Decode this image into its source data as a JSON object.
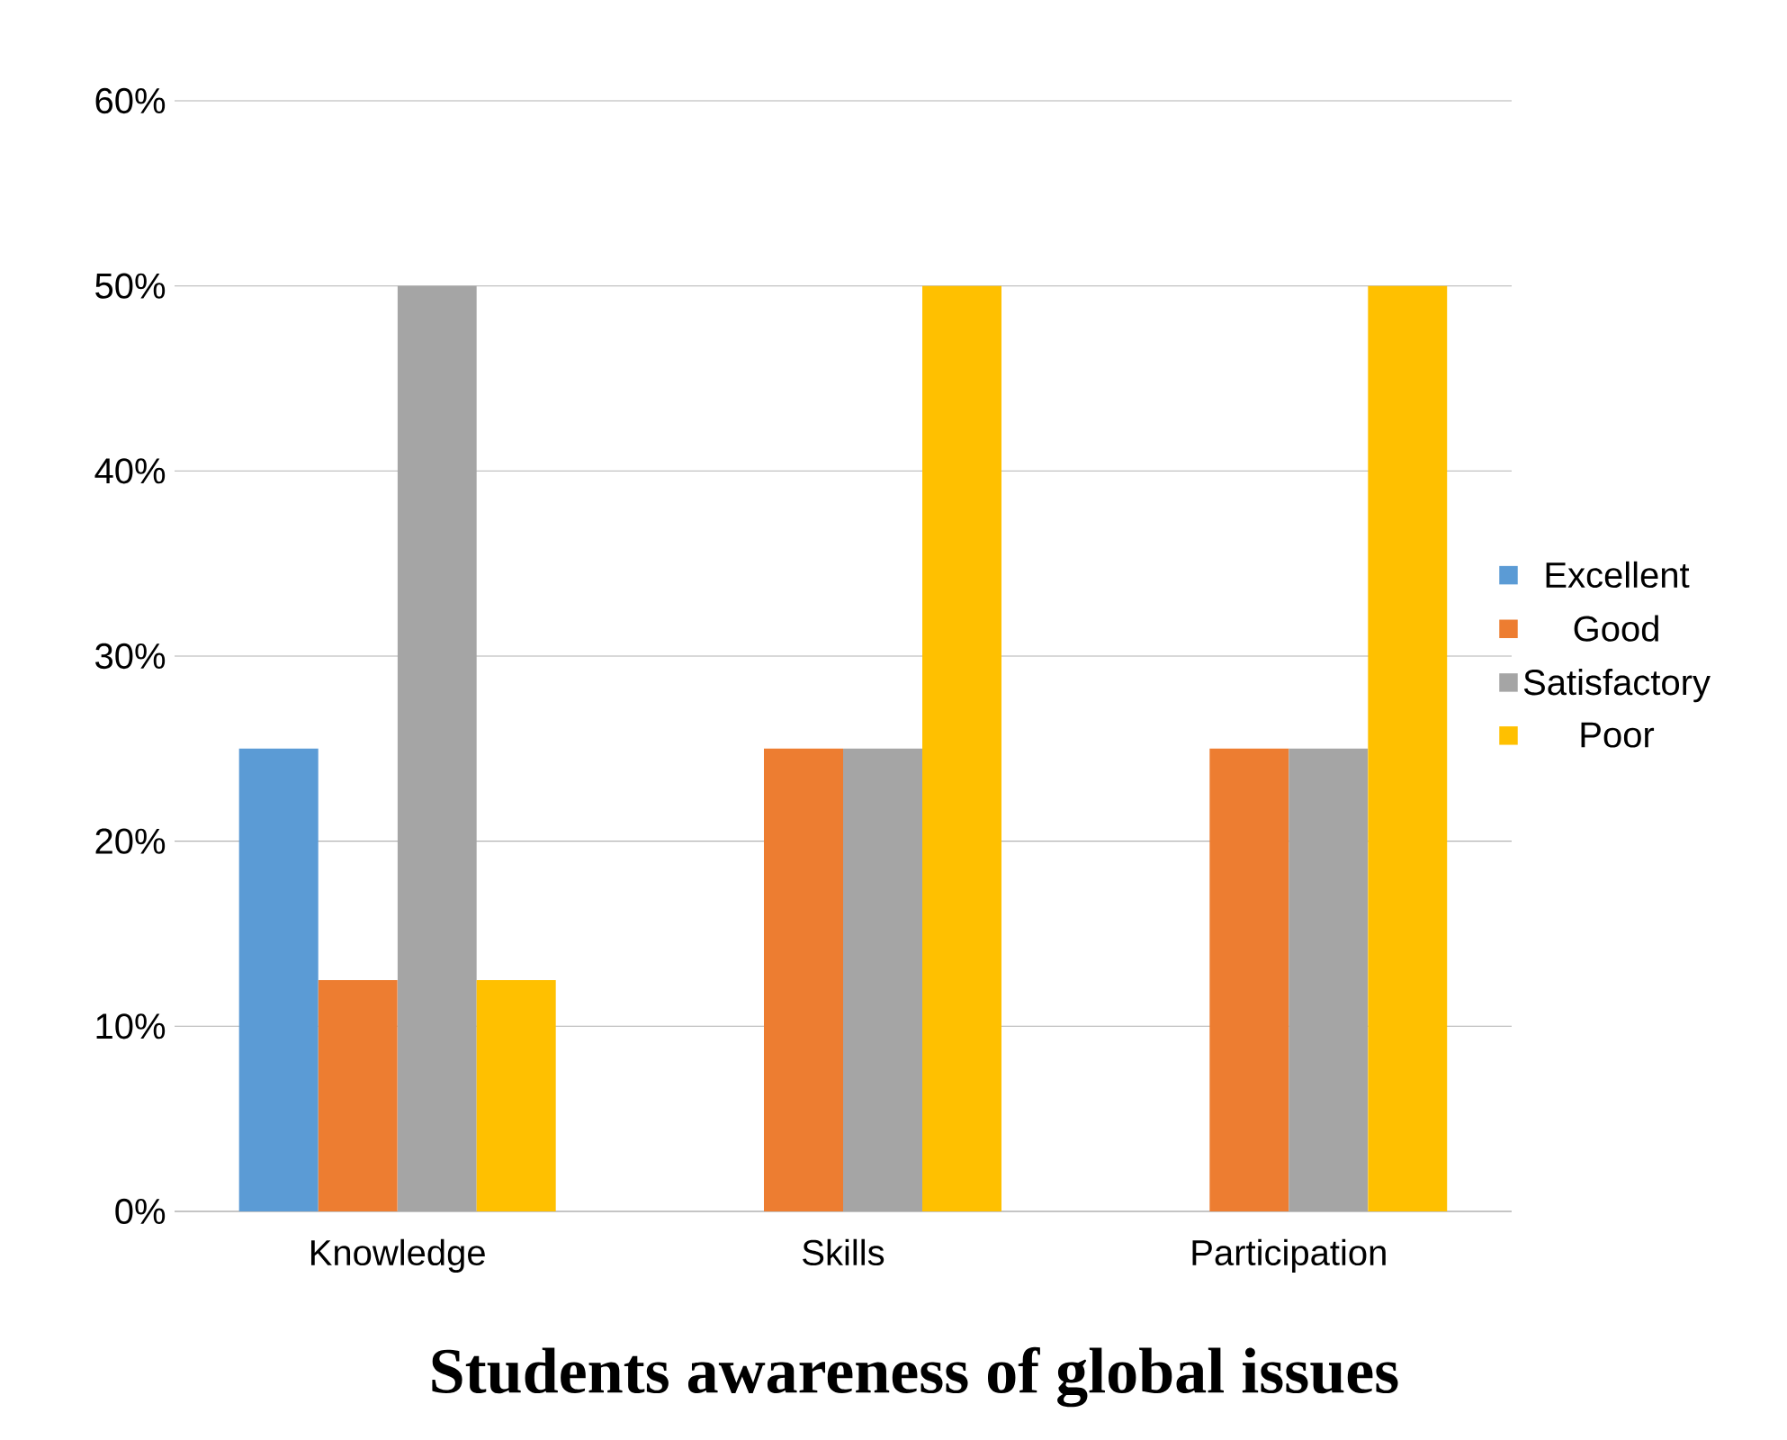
{
  "chart_data": {
    "type": "bar",
    "title": "Students awareness of global issues",
    "categories": [
      "Knowledge",
      "Skills",
      "Participation"
    ],
    "series": [
      {
        "name": "Excellent",
        "color": "#5b9bd5",
        "values": [
          25,
          0,
          0
        ]
      },
      {
        "name": "Good",
        "color": "#ed7d31",
        "values": [
          12.5,
          25,
          25
        ]
      },
      {
        "name": "Satisfactory",
        "color": "#a5a5a5",
        "values": [
          50,
          25,
          25
        ]
      },
      {
        "name": "Poor",
        "color": "#ffc000",
        "values": [
          12.5,
          50,
          50
        ]
      }
    ],
    "ylim": [
      0,
      60
    ],
    "yticks": [
      {
        "value": 0,
        "label": "0%"
      },
      {
        "value": 10,
        "label": "10%"
      },
      {
        "value": 20,
        "label": "20%"
      },
      {
        "value": 30,
        "label": "30%"
      },
      {
        "value": 40,
        "label": "40%"
      },
      {
        "value": 50,
        "label": "50%"
      },
      {
        "value": 60,
        "label": "60%"
      }
    ],
    "grid": "y",
    "legend": "right"
  }
}
